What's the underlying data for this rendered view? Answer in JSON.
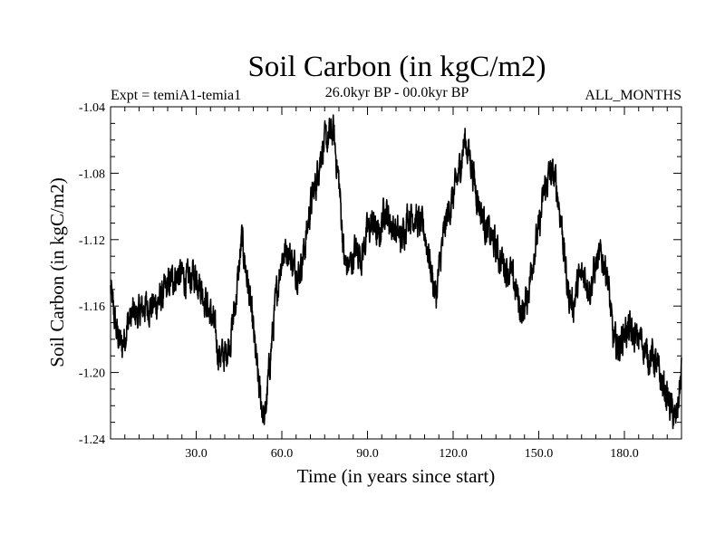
{
  "chart_data": {
    "type": "line",
    "title": "Soil Carbon (in kgC/m2)",
    "subtitle_left": "Expt = temiA1-temia1",
    "subtitle_center": "26.0kyr BP - 00.0kyr BP",
    "subtitle_right": "ALL_MONTHS",
    "xlabel": "Time (in years since start)",
    "ylabel": "Soil Carbon (in kgC/m2)",
    "xlim": [
      0,
      200
    ],
    "ylim": [
      -1.24,
      -1.04
    ],
    "x_major_ticks": [
      30,
      60,
      90,
      120,
      150,
      180
    ],
    "x_tick_labels": [
      "30.0",
      "60.0",
      "90.0",
      "120.0",
      "150.0",
      "180.0"
    ],
    "x_minor_step": 5,
    "y_major_ticks": [
      -1.24,
      -1.2,
      -1.16,
      -1.12,
      -1.08,
      -1.04
    ],
    "y_tick_labels": [
      "-1.24",
      "-1.20",
      "-1.16",
      "-1.12",
      "-1.08",
      "-1.04"
    ],
    "y_minor_step": 0.01,
    "noise_amplitude": 0.008,
    "series": [
      {
        "name": "Soil Carbon",
        "color": "#000000",
        "x": [
          0,
          2,
          4,
          6,
          8,
          10,
          12,
          15,
          18,
          21,
          24,
          27,
          30,
          33,
          36,
          38,
          40,
          42,
          44,
          46,
          48,
          50,
          52,
          54,
          56,
          58,
          60,
          62,
          64,
          66,
          68,
          70,
          72,
          74,
          76,
          78,
          80,
          82,
          84,
          86,
          88,
          90,
          92,
          94,
          96,
          98,
          100,
          102,
          104,
          106,
          108,
          110,
          112,
          114,
          116,
          118,
          120,
          122,
          124,
          126,
          128,
          130,
          132,
          134,
          136,
          138,
          140,
          142,
          144,
          146,
          148,
          150,
          152,
          154,
          156,
          158,
          160,
          162,
          164,
          166,
          168,
          170,
          172,
          174,
          176,
          178,
          180,
          182,
          184,
          186,
          188,
          190,
          192,
          194,
          196,
          198,
          200
        ],
        "y": [
          -1.15,
          -1.175,
          -1.185,
          -1.17,
          -1.165,
          -1.165,
          -1.16,
          -1.16,
          -1.155,
          -1.145,
          -1.14,
          -1.145,
          -1.14,
          -1.155,
          -1.17,
          -1.19,
          -1.19,
          -1.18,
          -1.155,
          -1.12,
          -1.145,
          -1.175,
          -1.21,
          -1.23,
          -1.19,
          -1.155,
          -1.13,
          -1.125,
          -1.135,
          -1.14,
          -1.125,
          -1.1,
          -1.085,
          -1.065,
          -1.06,
          -1.055,
          -1.085,
          -1.135,
          -1.135,
          -1.125,
          -1.13,
          -1.115,
          -1.11,
          -1.12,
          -1.1,
          -1.11,
          -1.115,
          -1.12,
          -1.105,
          -1.105,
          -1.11,
          -1.115,
          -1.135,
          -1.155,
          -1.125,
          -1.105,
          -1.095,
          -1.08,
          -1.06,
          -1.07,
          -1.09,
          -1.105,
          -1.115,
          -1.12,
          -1.13,
          -1.135,
          -1.14,
          -1.15,
          -1.165,
          -1.155,
          -1.13,
          -1.115,
          -1.09,
          -1.08,
          -1.085,
          -1.11,
          -1.15,
          -1.16,
          -1.145,
          -1.14,
          -1.15,
          -1.135,
          -1.13,
          -1.14,
          -1.18,
          -1.185,
          -1.175,
          -1.175,
          -1.18,
          -1.18,
          -1.19,
          -1.19,
          -1.2,
          -1.21,
          -1.22,
          -1.23,
          -1.2
        ]
      }
    ]
  }
}
